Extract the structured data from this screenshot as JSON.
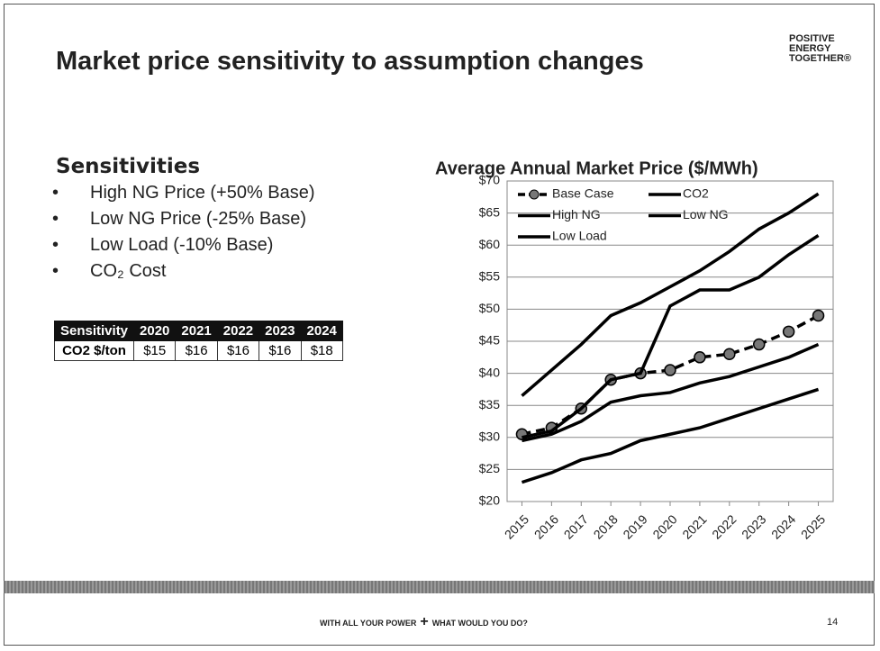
{
  "header": {
    "title": "Market price sensitivity to assumption changes",
    "logo": "POSITIVE ENERGY TOGETHER®"
  },
  "sensitivities": {
    "heading": "Sensitivities",
    "items": [
      "High NG Price (+50% Base)",
      "Low NG Price (-25% Base)",
      "Low Load (-10% Base)",
      "CO₂ Cost"
    ]
  },
  "table": {
    "header": [
      "Sensitivity",
      "2020",
      "2021",
      "2022",
      "2023",
      "2024"
    ],
    "rows": [
      [
        "CO2 $/ton",
        "$15",
        "$16",
        "$16",
        "$16",
        "$18"
      ]
    ]
  },
  "chart_data": {
    "type": "line",
    "title": "Average Annual Market Price ($/MWh)",
    "categories": [
      "2015",
      "2016",
      "2017",
      "2018",
      "2019",
      "2020",
      "2021",
      "2022",
      "2023",
      "2024",
      "2025"
    ],
    "ylim": [
      20,
      70
    ],
    "yticks": [
      {
        "value": 20,
        "label": "$20"
      },
      {
        "value": 25,
        "label": "$25"
      },
      {
        "value": 30,
        "label": "$30"
      },
      {
        "value": 35,
        "label": "$35"
      },
      {
        "value": 40,
        "label": "$40"
      },
      {
        "value": 45,
        "label": "$45"
      },
      {
        "value": 50,
        "label": "$50"
      },
      {
        "value": 55,
        "label": "$55"
      },
      {
        "value": 60,
        "label": "$60"
      },
      {
        "value": 65,
        "label": "$65"
      },
      {
        "value": 70,
        "label": "$70"
      }
    ],
    "grid": true,
    "legend": "upper left",
    "series": [
      {
        "name": "Base Case",
        "color": "#000000",
        "dashed": true,
        "marker": true,
        "values": [
          30.5,
          31.5,
          34.5,
          39,
          40,
          40.5,
          42.5,
          43,
          44.5,
          46.5,
          49
        ]
      },
      {
        "name": "CO2",
        "color": "#000000",
        "values": [
          30,
          31,
          34.5,
          39,
          40,
          50.5,
          53,
          53,
          55,
          58.5,
          61.5
        ]
      },
      {
        "name": "High NG",
        "color": "#000000",
        "values": [
          36.5,
          40.5,
          44.5,
          49,
          51,
          53.5,
          56,
          59,
          62.5,
          65,
          68
        ]
      },
      {
        "name": "Low NG",
        "color": "#000000",
        "values": [
          23,
          24.5,
          26.5,
          27.5,
          29.5,
          30.5,
          31.5,
          33,
          34.5,
          36,
          37.5
        ]
      },
      {
        "name": "Low Load",
        "color": "#000000",
        "values": [
          29.5,
          30.5,
          32.5,
          35.5,
          36.5,
          37,
          38.5,
          39.5,
          41,
          42.5,
          44.5
        ]
      }
    ]
  },
  "footer": {
    "left": "WITH ALL YOUR POWER",
    "symbol": "+",
    "right": "WHAT WOULD YOU DO?",
    "page": "14"
  }
}
